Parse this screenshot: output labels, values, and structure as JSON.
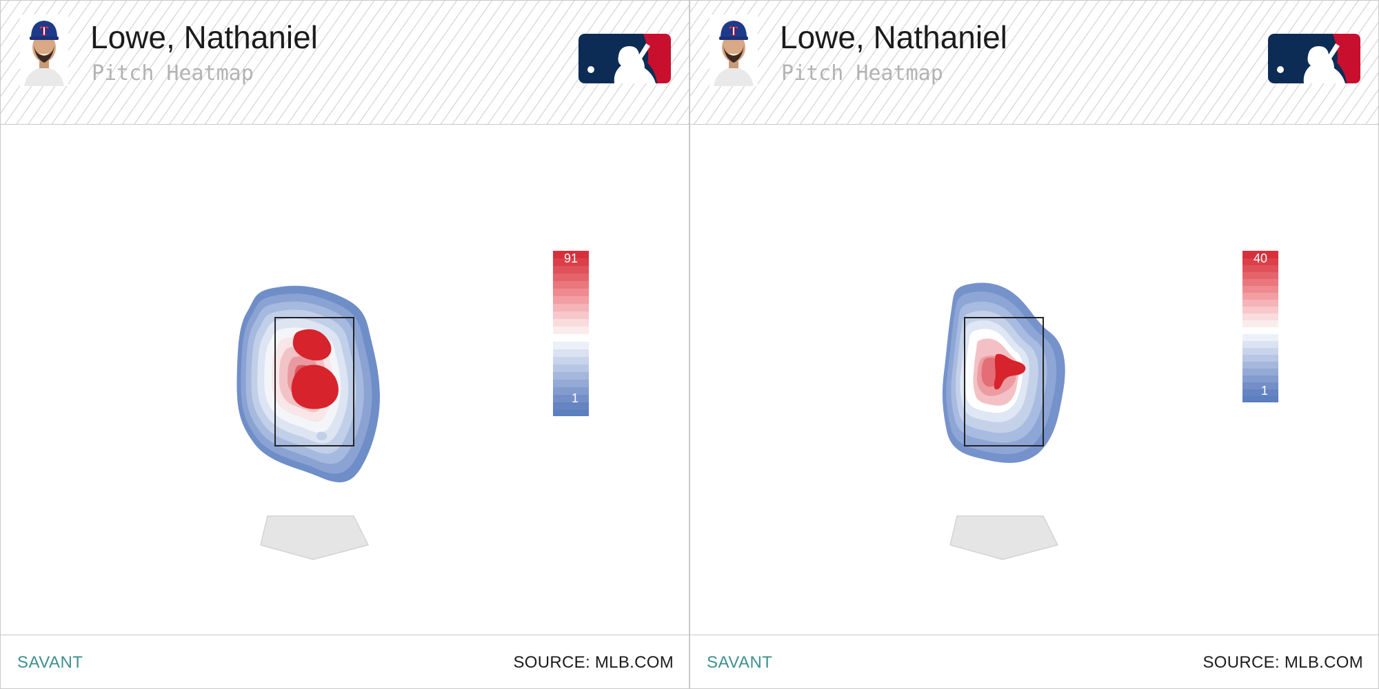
{
  "panels": [
    {
      "player_name": "Lowe, Nathaniel",
      "subtitle": "Pitch Heatmap",
      "footer_left": "SAVANT",
      "footer_right": "SOURCE: MLB.COM"
    },
    {
      "player_name": "Lowe, Nathaniel",
      "subtitle": "Pitch Heatmap",
      "footer_left": "SAVANT",
      "footer_right": "SOURCE: MLB.COM"
    }
  ],
  "icons": {
    "headshot": "player-headshot-icon",
    "team_cap_letter": "T",
    "logo": "mlb-logo-icon"
  },
  "colors": {
    "high": "#d7232c",
    "mid": "#ffffff",
    "low": "#5b7fbf",
    "savant": "#3f8f8f",
    "mlb_navy": "#0c2c56",
    "mlb_red": "#c8102e"
  },
  "chart_data": [
    {
      "type": "heatmap",
      "title": "Pitch Heatmap",
      "scale_min": 1,
      "scale_max": 91,
      "scale_labels": [
        "91",
        "1"
      ],
      "color_range": [
        "#5b7fbf",
        "#ffffff",
        "#d7232c"
      ],
      "density_peak": "middle of strike zone, slightly low"
    },
    {
      "type": "heatmap",
      "title": "Pitch Heatmap",
      "scale_min": 1,
      "scale_max": 40,
      "scale_labels": [
        "40",
        "1"
      ],
      "color_range": [
        "#5b7fbf",
        "#ffffff",
        "#d7232c"
      ],
      "density_peak": "middle of strike zone"
    }
  ]
}
